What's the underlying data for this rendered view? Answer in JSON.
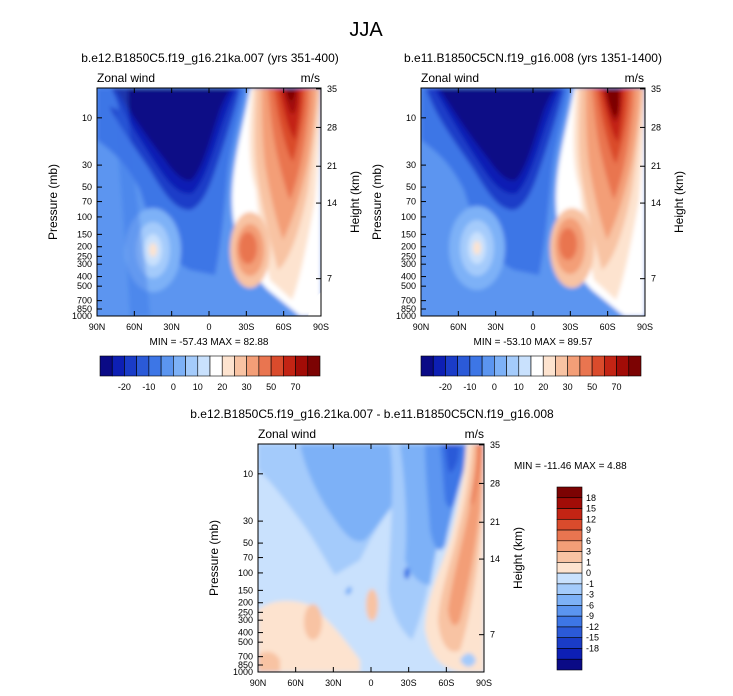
{
  "page_title": "JJA",
  "palettes": {
    "full": [
      "#0a0a86",
      "#0d1fb4",
      "#1a3cc8",
      "#2b5ad8",
      "#3d76e6",
      "#5b95f0",
      "#7db1f7",
      "#a4cbfb",
      "#c9e1fd",
      "#ffffff",
      "#fde3cf",
      "#f8c3a3",
      "#f39e77",
      "#e97550",
      "#da4b2c",
      "#c32414",
      "#a20c07",
      "#7c0303"
    ],
    "diff": [
      "#0a0a86",
      "#0d1fb4",
      "#1a3cc8",
      "#2b5ad8",
      "#3d76e6",
      "#5b95f0",
      "#7db1f7",
      "#a4cbfb",
      "#c9e1fd",
      "#fde3cf",
      "#f8c3a3",
      "#f39e77",
      "#e97550",
      "#da4b2c",
      "#c32414",
      "#a20c07",
      "#7c0303"
    ]
  },
  "chart_data": [
    {
      "type": "contour",
      "id": "panel1",
      "title": "b.e12.B1850C5.f19_g16.21ka.007 (yrs 351-400)",
      "left_label": "Zonal wind",
      "right_label": "m/s",
      "xlabel": "",
      "ylabel": "Pressure (mb)",
      "ylabel_right": "Height (km)",
      "x_ticks": [
        "90N",
        "60N",
        "30N",
        "0",
        "30S",
        "60S",
        "90S"
      ],
      "y_ticks": [
        "10",
        "30",
        "50",
        "70",
        "100",
        "150",
        "200",
        "250",
        "300",
        "400",
        "500",
        "700",
        "850",
        "1000"
      ],
      "height_ticks": [
        "35",
        "28",
        "21",
        "14",
        "7"
      ],
      "stats": "MIN = -57.43   MAX =  82.88",
      "colorbar_labels": [
        "-20",
        "-10",
        "0",
        "10",
        "20",
        "30",
        "50",
        "70"
      ]
    },
    {
      "type": "contour",
      "id": "panel2",
      "title": "b.e11.B1850C5CN.f19_g16.008 (yrs 1351-1400)",
      "left_label": "Zonal wind",
      "right_label": "m/s",
      "xlabel": "",
      "ylabel": "Pressure (mb)",
      "ylabel_right": "Height (km)",
      "x_ticks": [
        "90N",
        "60N",
        "30N",
        "0",
        "30S",
        "60S",
        "90S"
      ],
      "y_ticks": [
        "10",
        "30",
        "50",
        "70",
        "100",
        "150",
        "200",
        "250",
        "300",
        "400",
        "500",
        "700",
        "850",
        "1000"
      ],
      "height_ticks": [
        "35",
        "28",
        "21",
        "14",
        "7"
      ],
      "stats": "MIN = -53.10   MAX =  89.57",
      "colorbar_labels": [
        "-20",
        "-10",
        "0",
        "10",
        "20",
        "30",
        "50",
        "70"
      ]
    },
    {
      "type": "contour",
      "id": "panel3",
      "title": "b.e12.B1850C5.f19_g16.21ka.007 - b.e11.B1850C5CN.f19_g16.008",
      "left_label": "Zonal wind",
      "right_label": "m/s",
      "xlabel": "",
      "ylabel": "Pressure (mb)",
      "ylabel_right": "Height (km)",
      "x_ticks": [
        "90N",
        "60N",
        "30N",
        "0",
        "30S",
        "60S",
        "90S"
      ],
      "y_ticks": [
        "10",
        "30",
        "50",
        "70",
        "100",
        "150",
        "200",
        "250",
        "300",
        "400",
        "500",
        "700",
        "850",
        "1000"
      ],
      "height_ticks": [
        "35",
        "28",
        "21",
        "14",
        "7"
      ],
      "stats": "MIN = -11.46   MAX =  4.88",
      "colorbar_labels": [
        "18",
        "15",
        "12",
        "9",
        "6",
        "3",
        "1",
        "0",
        "-1",
        "-3",
        "-6",
        "-9",
        "-12",
        "-15",
        "-18"
      ]
    }
  ]
}
